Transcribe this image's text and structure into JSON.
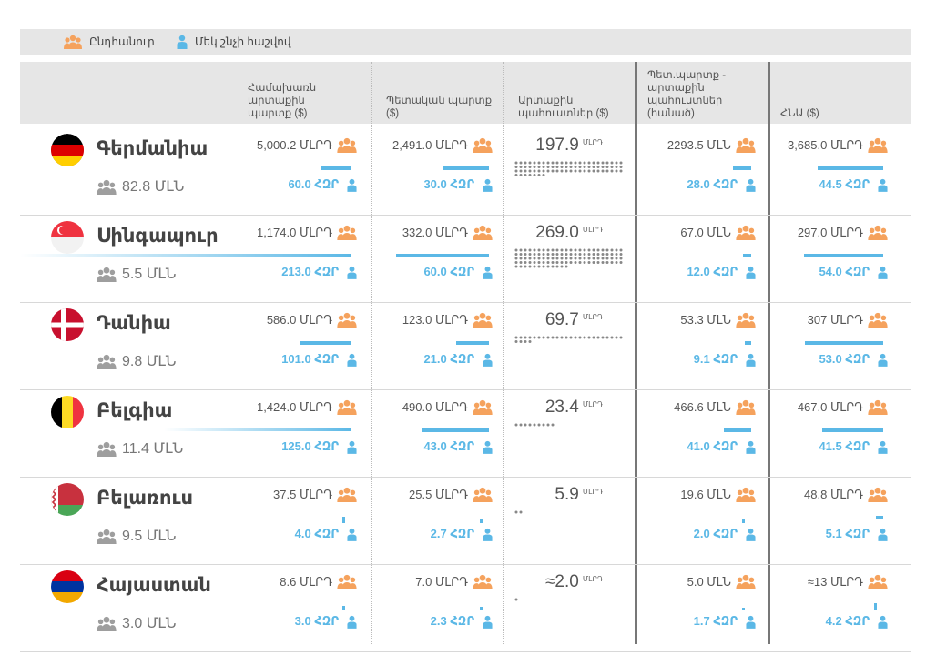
{
  "legend": {
    "total_label": "Ընդհանուր",
    "per_capita_label": "Մեկ շնչի հաշվով"
  },
  "columns": [
    "Համախառն արտաքին պարտք ($)",
    "Պետական պարտք ($)",
    "Արտաքին պահուստներ ($)",
    "Պետ.պարտք - արտաքին պահուստներ (հանած)",
    "ՀՆԱ ($)"
  ],
  "colors": {
    "accent": "#5bb8e6",
    "icon_orange": "#f5a25d",
    "icon_gray": "#9e9e9e",
    "reserve_dots": "#888888"
  },
  "icons": {
    "total": "group-icon",
    "per_capita": "person-icon",
    "population": "group-icon"
  },
  "chart_data": {
    "type": "table",
    "rows": [
      {
        "country": "Գերմանիա",
        "flag": "germany-flag",
        "population": "82.8 ՄԼՆ",
        "gross_debt": {
          "total": "5,000.2 ՄԼՐԴ",
          "per_capita": "60.0 ՀԶՐ",
          "per_capita_value": 60.0
        },
        "gov_debt": {
          "total": "2,491.0 ՄԼՐԴ",
          "per_capita": "30.0 ՀԶՐ",
          "per_capita_value": 30.0
        },
        "reserves": {
          "value": "197.9",
          "unit": "ՄԼՐԴ",
          "value_num": 197.9
        },
        "net": {
          "total": "2293.5 ՄԼՆ",
          "per_capita": "28.0 ՀԶՐ",
          "per_capita_value": 28.0
        },
        "gdp": {
          "total": "3,685.0 ՄԼՐԴ",
          "per_capita": "44.5 ՀԶՐ",
          "per_capita_value": 44.5
        }
      },
      {
        "country": "Սինգապուր",
        "flag": "singapore-flag",
        "population": "5.5 ՄԼՆ",
        "gross_debt": {
          "total": "1,174.0 ՄԼՐԴ",
          "per_capita": "213.0 ՀԶՐ",
          "per_capita_value": 213.0
        },
        "gov_debt": {
          "total": "332.0 ՄԼՐԴ",
          "per_capita": "60.0 ՀԶՐ",
          "per_capita_value": 60.0
        },
        "reserves": {
          "value": "269.0",
          "unit": "ՄԼՐԴ",
          "value_num": 269.0
        },
        "net": {
          "total": "67.0 ՄԼՆ",
          "per_capita": "12.0 ՀԶՐ",
          "per_capita_value": 12.0
        },
        "gdp": {
          "total": "297.0 ՄԼՐԴ",
          "per_capita": "54.0 ՀԶՐ",
          "per_capita_value": 54.0
        }
      },
      {
        "country": "Դանիա",
        "flag": "denmark-flag",
        "population": "9.8 ՄԼՆ",
        "gross_debt": {
          "total": "586.0 ՄԼՐԴ",
          "per_capita": "101.0 ՀԶՐ",
          "per_capita_value": 101.0
        },
        "gov_debt": {
          "total": "123.0 ՄԼՐԴ",
          "per_capita": "21.0 ՀԶՐ",
          "per_capita_value": 21.0
        },
        "reserves": {
          "value": "69.7",
          "unit": "ՄԼՐԴ",
          "value_num": 69.7
        },
        "net": {
          "total": "53.3 ՄԼՆ",
          "per_capita": "9.1 ՀԶՐ",
          "per_capita_value": 9.1
        },
        "gdp": {
          "total": "307 ՄԼՐԴ",
          "per_capita": "53.0 ՀԶՐ",
          "per_capita_value": 53.0
        }
      },
      {
        "country": "Բելգիա",
        "flag": "belgium-flag",
        "population": "11.4 ՄԼՆ",
        "gross_debt": {
          "total": "1,424.0 ՄԼՐԴ",
          "per_capita": "125.0 ՀԶՐ",
          "per_capita_value": 125.0
        },
        "gov_debt": {
          "total": "490.0 ՄԼՐԴ",
          "per_capita": "43.0 ՀԶՐ",
          "per_capita_value": 43.0
        },
        "reserves": {
          "value": "23.4",
          "unit": "ՄԼՐԴ",
          "value_num": 23.4
        },
        "net": {
          "total": "466.6 ՄԼՆ",
          "per_capita": "41.0 ՀԶՐ",
          "per_capita_value": 41.0
        },
        "gdp": {
          "total": "467.0 ՄԼՐԴ",
          "per_capita": "41.5 ՀԶՐ",
          "per_capita_value": 41.5
        }
      },
      {
        "country": "Բելառուս",
        "flag": "belarus-flag",
        "population": "9.5 ՄԼՆ",
        "gross_debt": {
          "total": "37.5 ՄԼՐԴ",
          "per_capita": "4.0 ՀԶՐ",
          "per_capita_value": 4.0
        },
        "gov_debt": {
          "total": "25.5 ՄԼՐԴ",
          "per_capita": "2.7 ՀԶՐ",
          "per_capita_value": 2.7
        },
        "reserves": {
          "value": "5.9",
          "unit": "ՄԼՐԴ",
          "value_num": 5.9
        },
        "net": {
          "total": "19.6 ՄԼՆ",
          "per_capita": "2.0 ՀԶՐ",
          "per_capita_value": 2.0
        },
        "gdp": {
          "total": "48.8 ՄԼՐԴ",
          "per_capita": "5.1 ՀԶՐ",
          "per_capita_value": 5.1
        }
      },
      {
        "country": "Հայաստան",
        "flag": "armenia-flag",
        "population": "3.0 ՄԼՆ",
        "gross_debt": {
          "total": "8.6 ՄԼՐԴ",
          "per_capita": "3.0 ՀԶՐ",
          "per_capita_value": 3.0
        },
        "gov_debt": {
          "total": "7.0 ՄԼՐԴ",
          "per_capita": "2.3 ՀԶՐ",
          "per_capita_value": 2.3
        },
        "reserves": {
          "value": "≈2.0",
          "unit": "ՄԼՐԴ",
          "value_num": 2.0
        },
        "net": {
          "total": "5.0 ՄԼՆ",
          "per_capita": "1.7 ՀԶՐ",
          "per_capita_value": 1.7
        },
        "gdp": {
          "total": "≈13 ՄԼՐԴ",
          "per_capita": "4.2 ՀԶՐ",
          "per_capita_value": 4.2
        }
      }
    ]
  }
}
